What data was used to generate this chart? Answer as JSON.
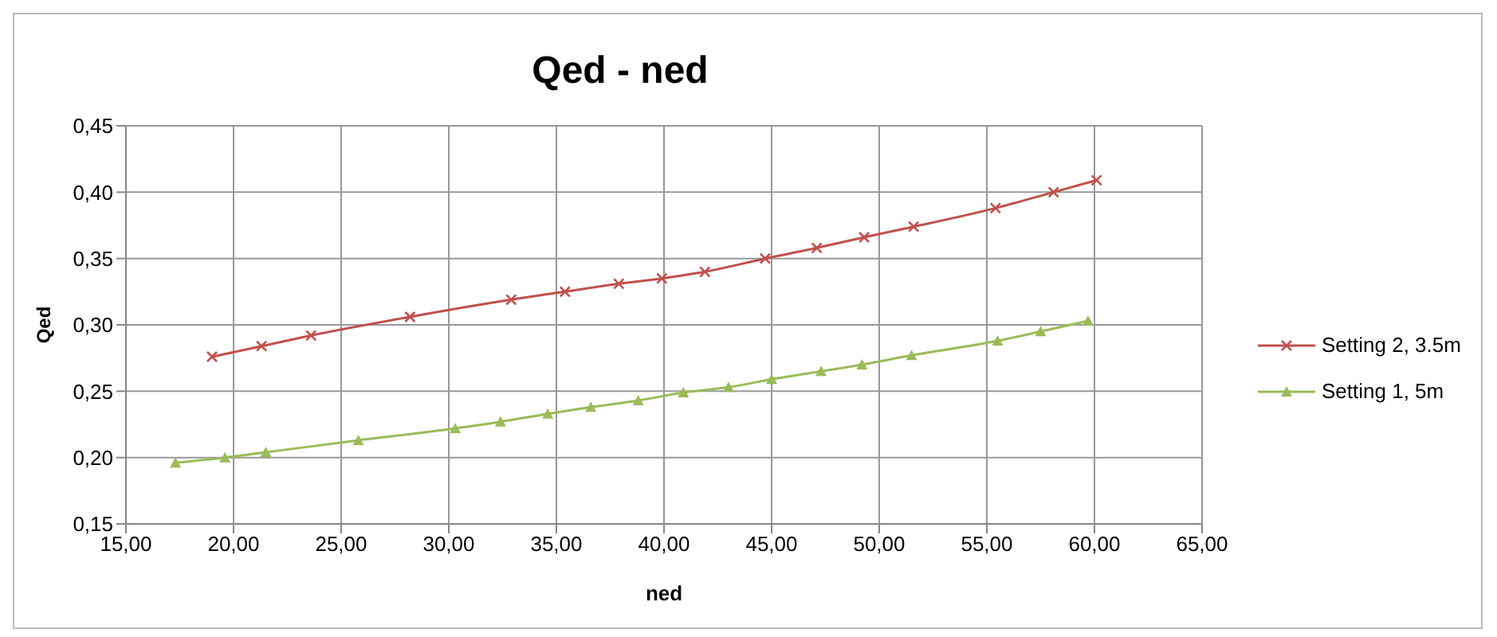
{
  "chart_data": {
    "type": "line",
    "title": "Qed - ned",
    "xlabel": "ned",
    "ylabel": "Qed",
    "xlim": [
      15,
      65
    ],
    "xticks": [
      {
        "value": 15,
        "label": "15,00"
      },
      {
        "value": 20,
        "label": "20,00"
      },
      {
        "value": 25,
        "label": "25,00"
      },
      {
        "value": 30,
        "label": "30,00"
      },
      {
        "value": 35,
        "label": "35,00"
      },
      {
        "value": 40,
        "label": "40,00"
      },
      {
        "value": 45,
        "label": "45,00"
      },
      {
        "value": 50,
        "label": "50,00"
      },
      {
        "value": 55,
        "label": "55,00"
      },
      {
        "value": 60,
        "label": "60,00"
      },
      {
        "value": 65,
        "label": "65,00"
      }
    ],
    "ylim": [
      0.15,
      0.45
    ],
    "yticks": [
      {
        "value": 0.15,
        "label": "0,15"
      },
      {
        "value": 0.2,
        "label": "0,20"
      },
      {
        "value": 0.25,
        "label": "0,25"
      },
      {
        "value": 0.3,
        "label": "0,30"
      },
      {
        "value": 0.35,
        "label": "0,35"
      },
      {
        "value": 0.4,
        "label": "0,40"
      },
      {
        "value": 0.45,
        "label": "0,45"
      }
    ],
    "grid": true,
    "legend": "right",
    "series": [
      {
        "name": "Setting 2, 3.5m",
        "color": "#c0504d",
        "marker": "cross",
        "x": [
          19.0,
          21.3,
          23.6,
          28.2,
          32.9,
          35.4,
          37.9,
          39.9,
          41.9,
          44.7,
          47.1,
          49.3,
          51.6,
          55.4,
          58.1,
          60.1
        ],
        "values": [
          0.276,
          0.284,
          0.292,
          0.306,
          0.319,
          0.325,
          0.331,
          0.335,
          0.34,
          0.35,
          0.358,
          0.366,
          0.374,
          0.388,
          0.4,
          0.409
        ]
      },
      {
        "name": "Setting 1, 5m",
        "color": "#9bbb59",
        "marker": "triangle",
        "x": [
          17.3,
          19.6,
          21.5,
          25.8,
          30.3,
          32.4,
          34.6,
          36.6,
          38.8,
          40.9,
          43.0,
          45.0,
          47.3,
          49.2,
          51.5,
          55.5,
          57.5,
          59.7
        ],
        "values": [
          0.196,
          0.2,
          0.204,
          0.213,
          0.222,
          0.227,
          0.233,
          0.238,
          0.243,
          0.249,
          0.253,
          0.259,
          0.265,
          0.27,
          0.277,
          0.288,
          0.295,
          0.303
        ]
      }
    ]
  }
}
